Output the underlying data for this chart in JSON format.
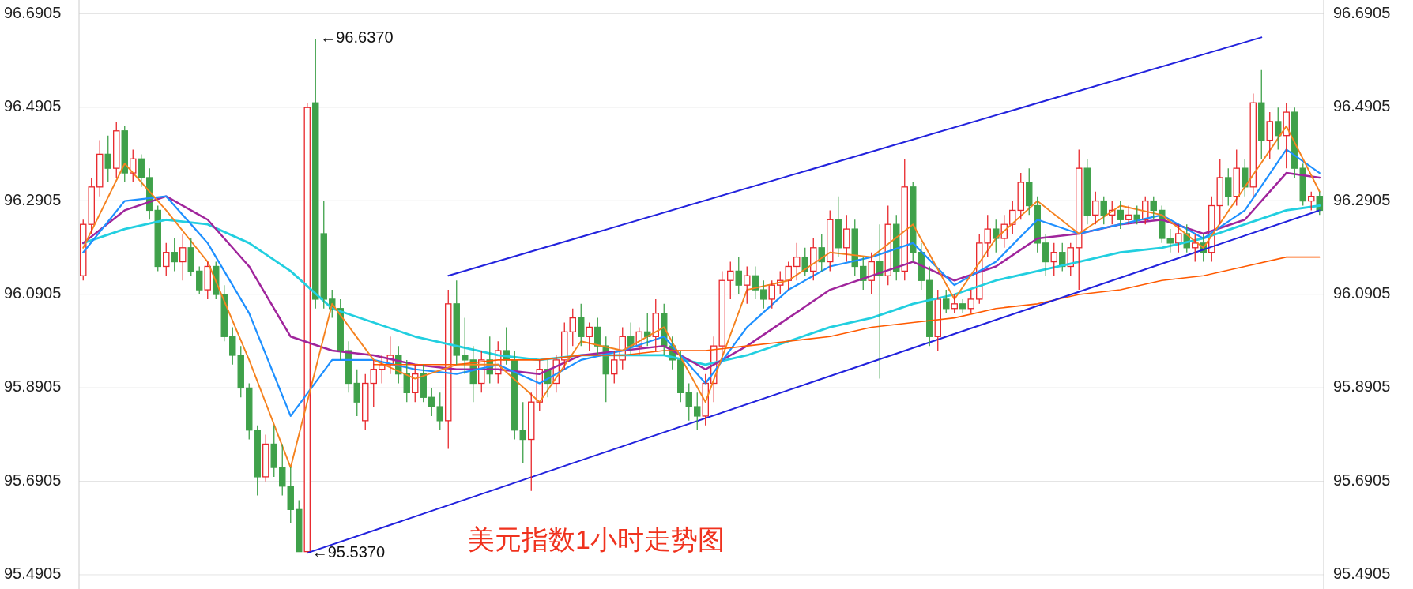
{
  "chart_data": {
    "type": "candlestick",
    "categories": [
      null,
      null,
      null,
      null,
      null,
      null,
      null,
      null,
      null,
      null,
      null,
      null,
      null,
      null,
      null,
      null,
      null,
      null,
      null,
      null,
      null,
      null,
      null,
      null,
      null,
      null,
      null,
      null,
      null,
      null,
      null,
      null,
      null,
      null,
      null,
      null,
      null,
      null,
      null,
      null,
      null,
      null,
      null,
      null,
      null,
      null,
      null,
      null,
      null,
      null,
      null,
      null,
      null,
      null,
      null,
      null,
      null,
      null,
      null,
      null,
      null,
      null,
      null,
      null,
      null,
      null,
      null,
      null,
      null,
      null,
      null,
      null,
      null,
      null,
      null,
      null,
      null,
      null,
      null,
      null,
      null,
      null,
      null,
      null,
      null,
      null,
      null,
      null,
      null,
      null,
      null,
      null,
      null,
      null,
      null,
      null,
      null,
      null,
      null,
      null,
      null,
      null,
      null,
      null,
      null,
      null,
      null,
      null,
      null,
      null,
      null,
      null,
      null,
      null,
      null,
      null,
      null,
      null,
      null,
      null,
      null,
      null,
      null,
      null,
      null,
      null,
      null,
      null,
      null,
      null,
      null,
      null,
      null,
      null,
      null,
      null,
      null,
      null,
      null,
      null,
      null,
      null,
      null,
      null,
      null,
      null,
      null,
      null,
      null,
      null
    ],
    "ohlc": [
      [
        96.13,
        96.25,
        96.12,
        96.24
      ],
      [
        96.24,
        96.34,
        96.22,
        96.32
      ],
      [
        96.32,
        96.42,
        96.3,
        96.39
      ],
      [
        96.39,
        96.43,
        96.33,
        96.36
      ],
      [
        96.36,
        96.46,
        96.34,
        96.44
      ],
      [
        96.44,
        96.45,
        96.33,
        96.35
      ],
      [
        96.35,
        96.4,
        96.33,
        96.38
      ],
      [
        96.38,
        96.39,
        96.32,
        96.34
      ],
      [
        96.34,
        96.36,
        96.25,
        96.27
      ],
      [
        96.27,
        96.28,
        96.14,
        96.15
      ],
      [
        96.15,
        96.2,
        96.13,
        96.18
      ],
      [
        96.18,
        96.21,
        96.14,
        96.16
      ],
      [
        96.16,
        96.22,
        96.12,
        96.19
      ],
      [
        96.19,
        96.21,
        96.13,
        96.14
      ],
      [
        96.14,
        96.15,
        96.09,
        96.1
      ],
      [
        96.1,
        96.16,
        96.08,
        96.15
      ],
      [
        96.15,
        96.16,
        96.08,
        96.09
      ],
      [
        96.09,
        96.11,
        95.99,
        96.0
      ],
      [
        96.0,
        96.02,
        95.94,
        95.96
      ],
      [
        95.96,
        95.98,
        95.87,
        95.89
      ],
      [
        95.89,
        95.9,
        95.78,
        95.8
      ],
      [
        95.8,
        95.81,
        95.66,
        95.7
      ],
      [
        95.7,
        95.79,
        95.69,
        95.77
      ],
      [
        95.77,
        95.81,
        95.7,
        95.72
      ],
      [
        95.72,
        95.77,
        95.66,
        95.68
      ],
      [
        95.68,
        95.72,
        95.6,
        95.63
      ],
      [
        95.63,
        95.65,
        95.54,
        95.54
      ],
      [
        95.54,
        96.5,
        95.537,
        96.49
      ],
      [
        96.5,
        96.637,
        96.06,
        96.08
      ],
      [
        96.22,
        96.29,
        96.06,
        96.08
      ],
      [
        96.08,
        96.1,
        96.04,
        96.06
      ],
      [
        96.06,
        96.08,
        95.95,
        95.97
      ],
      [
        95.97,
        95.99,
        95.88,
        95.9
      ],
      [
        95.9,
        95.93,
        95.83,
        95.86
      ],
      [
        95.82,
        95.92,
        95.8,
        95.9
      ],
      [
        95.9,
        95.95,
        95.85,
        95.93
      ],
      [
        95.93,
        95.96,
        95.9,
        95.94
      ],
      [
        95.94,
        96.0,
        95.92,
        95.96
      ],
      [
        95.96,
        95.98,
        95.9,
        95.92
      ],
      [
        95.92,
        95.95,
        95.86,
        95.88
      ],
      [
        95.88,
        95.94,
        95.86,
        95.92
      ],
      [
        95.92,
        95.94,
        95.86,
        95.87
      ],
      [
        95.87,
        95.89,
        95.83,
        95.85
      ],
      [
        95.85,
        95.88,
        95.8,
        95.82
      ],
      [
        95.82,
        96.1,
        95.76,
        96.07
      ],
      [
        96.07,
        96.12,
        95.94,
        95.96
      ],
      [
        95.96,
        96.04,
        95.92,
        95.95
      ],
      [
        95.95,
        95.98,
        95.86,
        95.9
      ],
      [
        95.9,
        95.97,
        95.88,
        95.95
      ],
      [
        95.95,
        96.0,
        95.9,
        95.92
      ],
      [
        95.92,
        95.99,
        95.9,
        95.97
      ],
      [
        95.97,
        96.02,
        95.94,
        95.95
      ],
      [
        95.95,
        95.97,
        95.78,
        95.8
      ],
      [
        95.8,
        95.86,
        95.73,
        95.78
      ],
      [
        95.78,
        95.88,
        95.67,
        95.86
      ],
      [
        95.86,
        95.95,
        95.84,
        95.93
      ],
      [
        95.93,
        95.95,
        95.87,
        95.9
      ],
      [
        95.9,
        95.96,
        95.88,
        95.95
      ],
      [
        95.95,
        96.03,
        95.93,
        96.01
      ],
      [
        96.01,
        96.06,
        95.98,
        96.04
      ],
      [
        96.04,
        96.07,
        95.98,
        96.0
      ],
      [
        96.0,
        96.03,
        95.97,
        96.02
      ],
      [
        96.02,
        96.04,
        95.96,
        95.98
      ],
      [
        95.98,
        96.0,
        95.86,
        95.92
      ],
      [
        95.92,
        95.97,
        95.9,
        95.95
      ],
      [
        95.95,
        96.02,
        95.93,
        96.0
      ],
      [
        96.0,
        96.03,
        95.96,
        95.98
      ],
      [
        95.98,
        96.02,
        95.96,
        96.01
      ],
      [
        96.01,
        96.05,
        95.98,
        96.0
      ],
      [
        96.0,
        96.08,
        95.97,
        96.05
      ],
      [
        96.05,
        96.07,
        95.96,
        95.98
      ],
      [
        95.98,
        96.0,
        95.93,
        95.95
      ],
      [
        95.95,
        95.97,
        95.86,
        95.88
      ],
      [
        95.88,
        95.9,
        95.82,
        95.85
      ],
      [
        95.85,
        95.88,
        95.8,
        95.83
      ],
      [
        95.83,
        95.92,
        95.81,
        95.9
      ],
      [
        95.9,
        96.0,
        95.86,
        95.98
      ],
      [
        95.98,
        96.14,
        95.96,
        96.12
      ],
      [
        96.12,
        96.16,
        96.08,
        96.14
      ],
      [
        96.14,
        96.17,
        96.09,
        96.11
      ],
      [
        96.11,
        96.15,
        96.07,
        96.13
      ],
      [
        96.13,
        96.15,
        96.08,
        96.1
      ],
      [
        96.1,
        96.12,
        96.06,
        96.08
      ],
      [
        96.08,
        96.12,
        96.06,
        96.11
      ],
      [
        96.11,
        96.14,
        96.09,
        96.12
      ],
      [
        96.12,
        96.16,
        96.1,
        96.15
      ],
      [
        96.15,
        96.2,
        96.12,
        96.17
      ],
      [
        96.17,
        96.19,
        96.13,
        96.14
      ],
      [
        96.14,
        96.21,
        96.12,
        96.19
      ],
      [
        96.19,
        96.22,
        96.14,
        96.16
      ],
      [
        96.16,
        96.27,
        96.14,
        96.25
      ],
      [
        96.25,
        96.3,
        96.17,
        96.19
      ],
      [
        96.19,
        96.26,
        96.16,
        96.23
      ],
      [
        96.23,
        96.25,
        96.13,
        96.15
      ],
      [
        96.15,
        96.17,
        96.1,
        96.12
      ],
      [
        96.12,
        96.18,
        96.09,
        96.16
      ],
      [
        96.16,
        96.24,
        95.91,
        96.13
      ],
      [
        96.13,
        96.28,
        96.11,
        96.24
      ],
      [
        96.24,
        96.26,
        96.12,
        96.14
      ],
      [
        96.14,
        96.38,
        96.12,
        96.32
      ],
      [
        96.32,
        96.33,
        96.16,
        96.18
      ],
      [
        96.18,
        96.2,
        96.1,
        96.12
      ],
      [
        96.12,
        96.15,
        95.98,
        96.0
      ],
      [
        96.0,
        96.1,
        95.97,
        96.08
      ],
      [
        96.08,
        96.1,
        96.05,
        96.06
      ],
      [
        96.06,
        96.09,
        96.05,
        96.07
      ],
      [
        96.07,
        96.08,
        96.05,
        96.06
      ],
      [
        96.06,
        96.1,
        96.05,
        96.08
      ],
      [
        96.08,
        96.22,
        96.07,
        96.2
      ],
      [
        96.2,
        96.26,
        96.17,
        96.23
      ],
      [
        96.23,
        96.25,
        96.18,
        96.21
      ],
      [
        96.21,
        96.26,
        96.19,
        96.24
      ],
      [
        96.24,
        96.29,
        96.22,
        96.27
      ],
      [
        96.27,
        96.35,
        96.25,
        96.33
      ],
      [
        96.33,
        96.36,
        96.26,
        96.28
      ],
      [
        96.28,
        96.3,
        96.18,
        96.2
      ],
      [
        96.2,
        96.22,
        96.13,
        96.16
      ],
      [
        96.16,
        96.2,
        96.13,
        96.18
      ],
      [
        96.18,
        96.2,
        96.14,
        96.15
      ],
      [
        96.15,
        96.2,
        96.13,
        96.19
      ],
      [
        96.19,
        96.4,
        96.1,
        96.36
      ],
      [
        96.36,
        96.38,
        96.24,
        96.26
      ],
      [
        96.26,
        96.31,
        96.24,
        96.29
      ],
      [
        96.29,
        96.3,
        96.24,
        96.26
      ],
      [
        96.26,
        96.29,
        96.24,
        96.27
      ],
      [
        96.27,
        96.29,
        96.23,
        96.25
      ],
      [
        96.25,
        96.28,
        96.24,
        96.26
      ],
      [
        96.26,
        96.28,
        96.24,
        96.25
      ],
      [
        96.25,
        96.3,
        96.24,
        96.29
      ],
      [
        96.29,
        96.3,
        96.25,
        96.27
      ],
      [
        96.27,
        96.28,
        96.2,
        96.21
      ],
      [
        96.21,
        96.23,
        96.18,
        96.2
      ],
      [
        96.2,
        96.24,
        96.18,
        96.22
      ],
      [
        96.22,
        96.24,
        96.18,
        96.19
      ],
      [
        96.19,
        96.22,
        96.16,
        96.2
      ],
      [
        96.2,
        96.22,
        96.16,
        96.18
      ],
      [
        96.18,
        96.3,
        96.16,
        96.28
      ],
      [
        96.28,
        96.38,
        96.24,
        96.34
      ],
      [
        96.34,
        96.36,
        96.28,
        96.3
      ],
      [
        96.3,
        96.4,
        96.28,
        96.36
      ],
      [
        96.36,
        96.38,
        96.3,
        96.32
      ],
      [
        96.32,
        96.52,
        96.3,
        96.5
      ],
      [
        96.5,
        96.57,
        96.38,
        96.42
      ],
      [
        96.42,
        96.48,
        96.38,
        96.46
      ],
      [
        96.46,
        96.49,
        96.4,
        96.43
      ],
      [
        96.43,
        96.5,
        96.36,
        96.48
      ],
      [
        96.48,
        96.49,
        96.34,
        96.36
      ],
      [
        96.36,
        96.37,
        96.28,
        96.29
      ],
      [
        96.29,
        96.31,
        96.27,
        96.3
      ],
      [
        96.3,
        96.31,
        96.26,
        96.27
      ]
    ],
    "series": [
      {
        "type": "line",
        "color": "#22cfe0",
        "values": [
          96.2,
          null,
          null,
          null,
          null,
          96.23,
          null,
          null,
          null,
          null,
          96.25,
          null,
          null,
          null,
          null,
          96.24,
          null,
          null,
          null,
          null,
          96.2,
          null,
          null,
          null,
          null,
          96.14,
          null,
          null,
          null,
          null,
          96.06,
          null,
          null,
          null,
          null,
          96.03,
          null,
          null,
          null,
          null,
          96.0,
          null,
          null,
          null,
          null,
          95.98,
          null,
          null,
          null,
          null,
          95.96,
          null,
          null,
          null,
          null,
          95.95,
          null,
          null,
          null,
          null,
          95.96,
          null,
          null,
          null,
          null,
          95.96,
          null,
          null,
          null,
          null,
          95.96,
          null,
          null,
          null,
          null,
          95.94,
          null,
          null,
          null,
          null,
          95.96,
          null,
          null,
          null,
          null,
          95.99,
          null,
          null,
          null,
          null,
          96.02,
          null,
          null,
          null,
          null,
          96.04,
          null,
          null,
          null,
          null,
          96.07,
          null,
          null,
          null,
          null,
          96.09,
          null,
          null,
          null,
          null,
          96.12,
          null,
          null,
          null,
          null,
          96.14,
          null,
          null,
          null,
          null,
          96.16,
          null,
          null,
          null,
          null,
          96.18,
          null,
          null,
          null,
          null,
          96.19,
          null,
          null,
          null,
          null,
          96.21,
          null,
          null,
          null,
          null,
          96.24,
          null,
          null,
          null,
          null,
          96.27,
          null,
          null,
          null,
          96.28
        ]
      },
      {
        "type": "line",
        "color": "#a0259c",
        "values": [
          96.2,
          null,
          null,
          null,
          null,
          96.27,
          null,
          null,
          null,
          null,
          96.3,
          null,
          null,
          null,
          null,
          96.25,
          null,
          null,
          null,
          null,
          96.15,
          null,
          null,
          null,
          null,
          96.0,
          null,
          null,
          null,
          null,
          95.97,
          null,
          null,
          null,
          null,
          95.96,
          null,
          null,
          null,
          null,
          95.94,
          null,
          null,
          null,
          null,
          95.93,
          null,
          null,
          null,
          null,
          95.93,
          null,
          null,
          null,
          null,
          95.92,
          null,
          null,
          null,
          null,
          95.96,
          null,
          null,
          null,
          null,
          95.97,
          null,
          null,
          null,
          null,
          95.98,
          null,
          null,
          null,
          null,
          95.93,
          null,
          null,
          null,
          null,
          95.98,
          null,
          null,
          null,
          null,
          96.04,
          null,
          null,
          null,
          null,
          96.1,
          null,
          null,
          null,
          null,
          96.13,
          null,
          null,
          null,
          null,
          96.16,
          null,
          null,
          null,
          null,
          96.12,
          null,
          null,
          null,
          null,
          96.15,
          null,
          null,
          null,
          null,
          96.21,
          null,
          null,
          null,
          null,
          96.22,
          null,
          null,
          null,
          null,
          96.24,
          null,
          null,
          null,
          null,
          96.25,
          null,
          null,
          null,
          null,
          96.22,
          null,
          null,
          null,
          null,
          96.25,
          null,
          null,
          null,
          null,
          96.35,
          null,
          null,
          null,
          96.34
        ]
      },
      {
        "type": "line",
        "color": "#1e90ff",
        "values": [
          96.18,
          null,
          null,
          null,
          null,
          96.29,
          null,
          null,
          null,
          null,
          96.3,
          null,
          null,
          null,
          null,
          96.2,
          null,
          null,
          null,
          null,
          96.05,
          null,
          null,
          null,
          null,
          95.83,
          null,
          null,
          null,
          null,
          95.95,
          null,
          null,
          null,
          null,
          95.95,
          null,
          null,
          null,
          null,
          95.93,
          null,
          null,
          null,
          null,
          95.92,
          null,
          null,
          null,
          null,
          95.94,
          null,
          null,
          null,
          null,
          95.9,
          null,
          null,
          null,
          null,
          95.95,
          null,
          null,
          null,
          null,
          95.97,
          null,
          null,
          null,
          null,
          96.0,
          null,
          null,
          null,
          null,
          95.9,
          null,
          null,
          null,
          null,
          96.02,
          null,
          null,
          null,
          null,
          96.1,
          null,
          null,
          null,
          null,
          96.15,
          null,
          null,
          null,
          null,
          96.17,
          null,
          null,
          null,
          null,
          96.2,
          null,
          null,
          null,
          null,
          96.11,
          null,
          null,
          null,
          null,
          96.16,
          null,
          null,
          null,
          null,
          96.25,
          null,
          null,
          null,
          null,
          96.22,
          null,
          null,
          null,
          null,
          96.24,
          null,
          null,
          null,
          null,
          96.26,
          null,
          null,
          null,
          null,
          96.21,
          null,
          null,
          null,
          null,
          96.27,
          null,
          null,
          null,
          null,
          96.4,
          null,
          null,
          null,
          96.35
        ]
      },
      {
        "type": "line",
        "color": "#f5821f",
        "values": [
          96.19,
          null,
          null,
          null,
          null,
          96.37,
          null,
          null,
          null,
          null,
          96.27,
          null,
          null,
          null,
          null,
          96.16,
          null,
          null,
          null,
          null,
          95.95,
          null,
          null,
          null,
          null,
          95.72,
          null,
          null,
          null,
          null,
          96.07,
          null,
          null,
          null,
          null,
          95.95,
          null,
          null,
          null,
          null,
          95.91,
          null,
          null,
          null,
          null,
          95.94,
          null,
          null,
          null,
          null,
          95.94,
          null,
          null,
          null,
          null,
          95.86,
          null,
          null,
          null,
          null,
          95.99,
          null,
          null,
          null,
          null,
          95.97,
          null,
          null,
          null,
          null,
          96.02,
          null,
          null,
          null,
          null,
          95.86,
          null,
          null,
          null,
          null,
          96.1,
          null,
          null,
          null,
          null,
          96.12,
          null,
          null,
          null,
          null,
          96.18,
          null,
          null,
          null,
          null,
          96.17,
          null,
          null,
          null,
          null,
          96.24,
          null,
          null,
          null,
          null,
          96.08,
          null,
          null,
          null,
          null,
          96.21,
          null,
          null,
          null,
          null,
          96.29,
          null,
          null,
          null,
          null,
          96.22,
          null,
          null,
          null,
          null,
          96.28,
          null,
          null,
          null,
          null,
          96.26,
          null,
          null,
          null,
          null,
          96.19,
          null,
          null,
          null,
          null,
          96.32,
          null,
          null,
          null,
          null,
          96.45,
          null,
          null,
          null,
          96.31
        ]
      },
      {
        "type": "line",
        "color": "#ff5a00",
        "values": [
          null,
          null,
          null,
          null,
          null,
          null,
          null,
          null,
          null,
          null,
          null,
          null,
          null,
          null,
          null,
          null,
          null,
          null,
          null,
          null,
          null,
          null,
          null,
          null,
          null,
          null,
          null,
          null,
          null,
          null,
          null,
          null,
          null,
          null,
          null,
          95.94,
          null,
          null,
          null,
          null,
          95.94,
          null,
          null,
          null,
          null,
          95.94,
          null,
          null,
          null,
          null,
          95.95,
          null,
          null,
          null,
          null,
          95.95,
          null,
          null,
          null,
          null,
          95.96,
          null,
          null,
          null,
          null,
          95.96,
          null,
          null,
          null,
          null,
          95.97,
          null,
          null,
          null,
          null,
          95.97,
          null,
          null,
          null,
          null,
          95.98,
          null,
          null,
          null,
          null,
          95.99,
          null,
          null,
          null,
          null,
          96.0,
          null,
          null,
          null,
          null,
          96.02,
          null,
          null,
          null,
          null,
          96.03,
          null,
          null,
          null,
          null,
          96.04,
          null,
          null,
          null,
          null,
          96.06,
          null,
          null,
          null,
          null,
          96.07,
          null,
          null,
          null,
          null,
          96.09,
          null,
          null,
          null,
          null,
          96.1,
          null,
          null,
          null,
          null,
          96.12,
          null,
          null,
          null,
          null,
          96.13,
          null,
          null,
          null,
          null,
          96.15,
          null,
          null,
          null,
          null,
          96.17,
          null,
          null,
          null,
          96.17
        ]
      },
      {
        "type": "line",
        "color": "#2222dd",
        "values": [
          null,
          null,
          null,
          null,
          null,
          null,
          null,
          null,
          null,
          null,
          null,
          null,
          null,
          null,
          null,
          null,
          null,
          null,
          null,
          null,
          null,
          null,
          null,
          null,
          null,
          null,
          null,
          null,
          null,
          null,
          null,
          null,
          null,
          null,
          null,
          null,
          null,
          null,
          null,
          null,
          null,
          null,
          null,
          null,
          96.13,
          null,
          null,
          null,
          null,
          null,
          null,
          null,
          null,
          null,
          null,
          null,
          null,
          null,
          null,
          null,
          null,
          null,
          null,
          null,
          null,
          null,
          null,
          null,
          null,
          null,
          null,
          null,
          null,
          null,
          null,
          null,
          null,
          null,
          null,
          null,
          null,
          null,
          null,
          null,
          null,
          null,
          null,
          null,
          null,
          null,
          null,
          null,
          null,
          null,
          null,
          null,
          null,
          null,
          null,
          null,
          null,
          null,
          null,
          null,
          null,
          null,
          null,
          null,
          null,
          null,
          null,
          null,
          null,
          null,
          null,
          null,
          null,
          null,
          null,
          null,
          null,
          null,
          null,
          null,
          null,
          null,
          null,
          null,
          null,
          null,
          null,
          null,
          null,
          null,
          null,
          null,
          null,
          null,
          null,
          null,
          null,
          null,
          96.64,
          null,
          null,
          null,
          null,
          null,
          null,
          null
        ]
      },
      {
        "type": "line",
        "color": "#2222dd",
        "values": [
          null,
          null,
          null,
          null,
          null,
          null,
          null,
          null,
          null,
          null,
          null,
          null,
          null,
          null,
          null,
          null,
          null,
          null,
          null,
          null,
          null,
          null,
          null,
          null,
          null,
          null,
          null,
          95.537,
          null,
          null,
          null,
          null,
          null,
          null,
          null,
          null,
          null,
          null,
          null,
          null,
          null,
          null,
          null,
          null,
          null,
          null,
          null,
          null,
          null,
          null,
          null,
          null,
          null,
          null,
          null,
          null,
          null,
          null,
          null,
          null,
          null,
          null,
          null,
          null,
          null,
          null,
          null,
          null,
          null,
          null,
          null,
          null,
          null,
          null,
          null,
          null,
          null,
          null,
          null,
          null,
          null,
          null,
          null,
          null,
          null,
          null,
          null,
          null,
          null,
          null,
          null,
          null,
          null,
          null,
          null,
          null,
          null,
          null,
          null,
          null,
          null,
          null,
          null,
          null,
          null,
          null,
          null,
          null,
          null,
          null,
          null,
          null,
          null,
          null,
          null,
          null,
          null,
          null,
          null,
          null,
          null,
          null,
          null,
          null,
          null,
          null,
          null,
          null,
          null,
          null,
          null,
          null,
          null,
          null,
          null,
          null,
          null,
          null,
          null,
          null,
          null,
          null,
          null,
          null,
          null,
          null,
          null,
          null,
          null,
          96.27
        ]
      }
    ],
    "ylim": [
      95.46,
      96.72
    ],
    "yticks": [
      95.4905,
      95.6905,
      95.8905,
      96.0905,
      96.2905,
      96.4905,
      96.6905
    ],
    "y2lim": [
      95.46,
      96.72
    ],
    "y2ticks": [
      95.4905,
      95.6905,
      95.8905,
      96.0905,
      96.2905,
      96.4905,
      96.6905
    ],
    "grid": "y",
    "annotations": [
      "←96.6370",
      "←95.5370",
      "美元指数1小时走势图"
    ]
  }
}
